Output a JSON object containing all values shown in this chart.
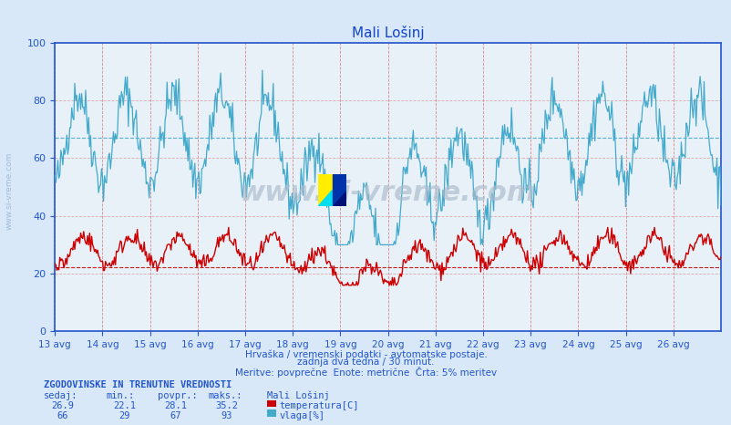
{
  "title": "Mali Lošinj",
  "background_color": "#d8e8f8",
  "plot_bg_color": "#e8f0f8",
  "line1_color": "#cc0000",
  "line2_color": "#44aacc",
  "hline1_color": "#cc0000",
  "hline2_color": "#44aacc",
  "vline_color": "#cc4444",
  "grid_color_h": "#cc6666",
  "axis_color": "#2255cc",
  "text_color": "#2255cc",
  "title_color": "#1144cc",
  "temp_min": 22.1,
  "temp_max": 35.2,
  "temp_avg": 28.1,
  "temp_cur": 26.9,
  "hum_min": 29,
  "hum_max": 93,
  "hum_avg": 67,
  "hum_cur": 66,
  "xlabel_dates": [
    "13 avg",
    "14 avg",
    "15 avg",
    "16 avg",
    "17 avg",
    "18 avg",
    "19 avg",
    "20 avg",
    "21 avg",
    "22 avg",
    "23 avg",
    "24 avg",
    "25 avg",
    "26 avg"
  ],
  "watermark_text": "www.si-vreme.com",
  "footer_line1": "Hrvaška / vremenski podatki - avtomatske postaje.",
  "footer_line2": "zadnja dva tedna / 30 minut.",
  "footer_line3": "Meritve: povprečne  Enote: metrične  Črta: 5% meritev",
  "legend_title": "Mali Lošinj",
  "legend_temp": "temperatura[C]",
  "legend_hum": "vlaga[%]",
  "table_header": "ZGODOVINSKE IN TRENUTNE VREDNOSTI",
  "table_cols": [
    "sedaj:",
    "min.:",
    "povpr.:",
    "maks.:"
  ],
  "sidebar_text": "www.si-vreme.com",
  "hline_temp_val": 22.1,
  "hline_hum_val": 67.0
}
